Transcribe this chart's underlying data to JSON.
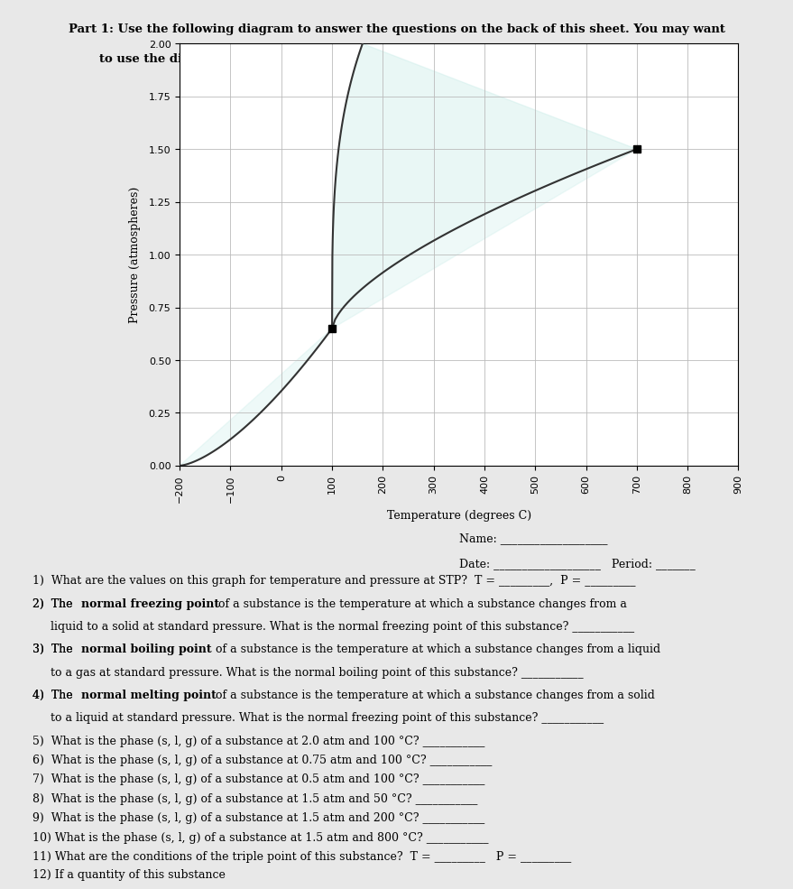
{
  "title_part1": "Part 1: Use the following diagram to answer the questions on the back of this sheet. You may want",
  "title_part2": "to use the diagram above to label where each phase exists on the specific diagram below.",
  "xlabel": "Temperature (degrees C)",
  "ylabel": "Pressure (atmospheres)",
  "xlim": [
    -200,
    900
  ],
  "ylim": [
    0.0,
    2.0
  ],
  "xticks": [
    -200,
    -100,
    0,
    100,
    200,
    300,
    400,
    500,
    600,
    700,
    800,
    900
  ],
  "yticks": [
    0.0,
    0.25,
    0.5,
    0.75,
    1.0,
    1.25,
    1.5,
    1.75,
    2.0
  ],
  "triple_point": [
    100,
    0.65
  ],
  "critical_point": [
    700,
    1.5
  ],
  "bg_color": "#f0f0f0",
  "plot_bg": "#ffffff",
  "grid_color": "#cccccc",
  "line_color": "#333333",
  "separator_color": "#333333",
  "questions": [
    "Name: _______________________",
    "Date: _______________________   Period: _______",
    "1)  What are the values on this graph for temperature and pressure at STP?  T = ___________,  P = ___________",
    "2)  The normal freezing point of a substance is the temperature at which a substance changes from a",
    "     liquid to a solid at standard pressure. What is the normal freezing point of this substance? ___________",
    "3)  The normal boiling point of a substance is the temperature at which a substance changes from a liquid",
    "     to a gas at standard pressure. What is the normal boiling point of this substance? ___________",
    "4)  The normal melting point of a substance is the temperature at which a substance changes from a solid",
    "     to a liquid at standard pressure. What is the normal freezing point of this substance? ___________",
    "5)  What is the phase (s, l, g) of a substance at 2.0 atm and 100 °C? ___________",
    "6)  What is the phase (s, l, g) of a substance at 0.75 atm and 100 °C? ___________",
    "7)  What is the phase (s, l, g) of a substance at 0.5 atm and 100 °C? ___________",
    "8)  What is the phase (s, l, g) of a substance at 1.5 atm and 50 °C? ___________",
    "9)  What is the phase (s, l, g) of a substance at 1.5 atm and 200 °C? ___________",
    "10) What is the phase (s, l, g) of a substance at 1.5 atm and 800 °C? ___________",
    "11) What are the conditions of the triple point of this substance?  T = ___________   P = ___________",
    "12) If a quantity of this substance"
  ],
  "bold_words": {
    "2)": [
      "normal freezing point"
    ],
    "3)": [
      "normal boiling point"
    ],
    "4)": [
      "normal melting point"
    ]
  }
}
